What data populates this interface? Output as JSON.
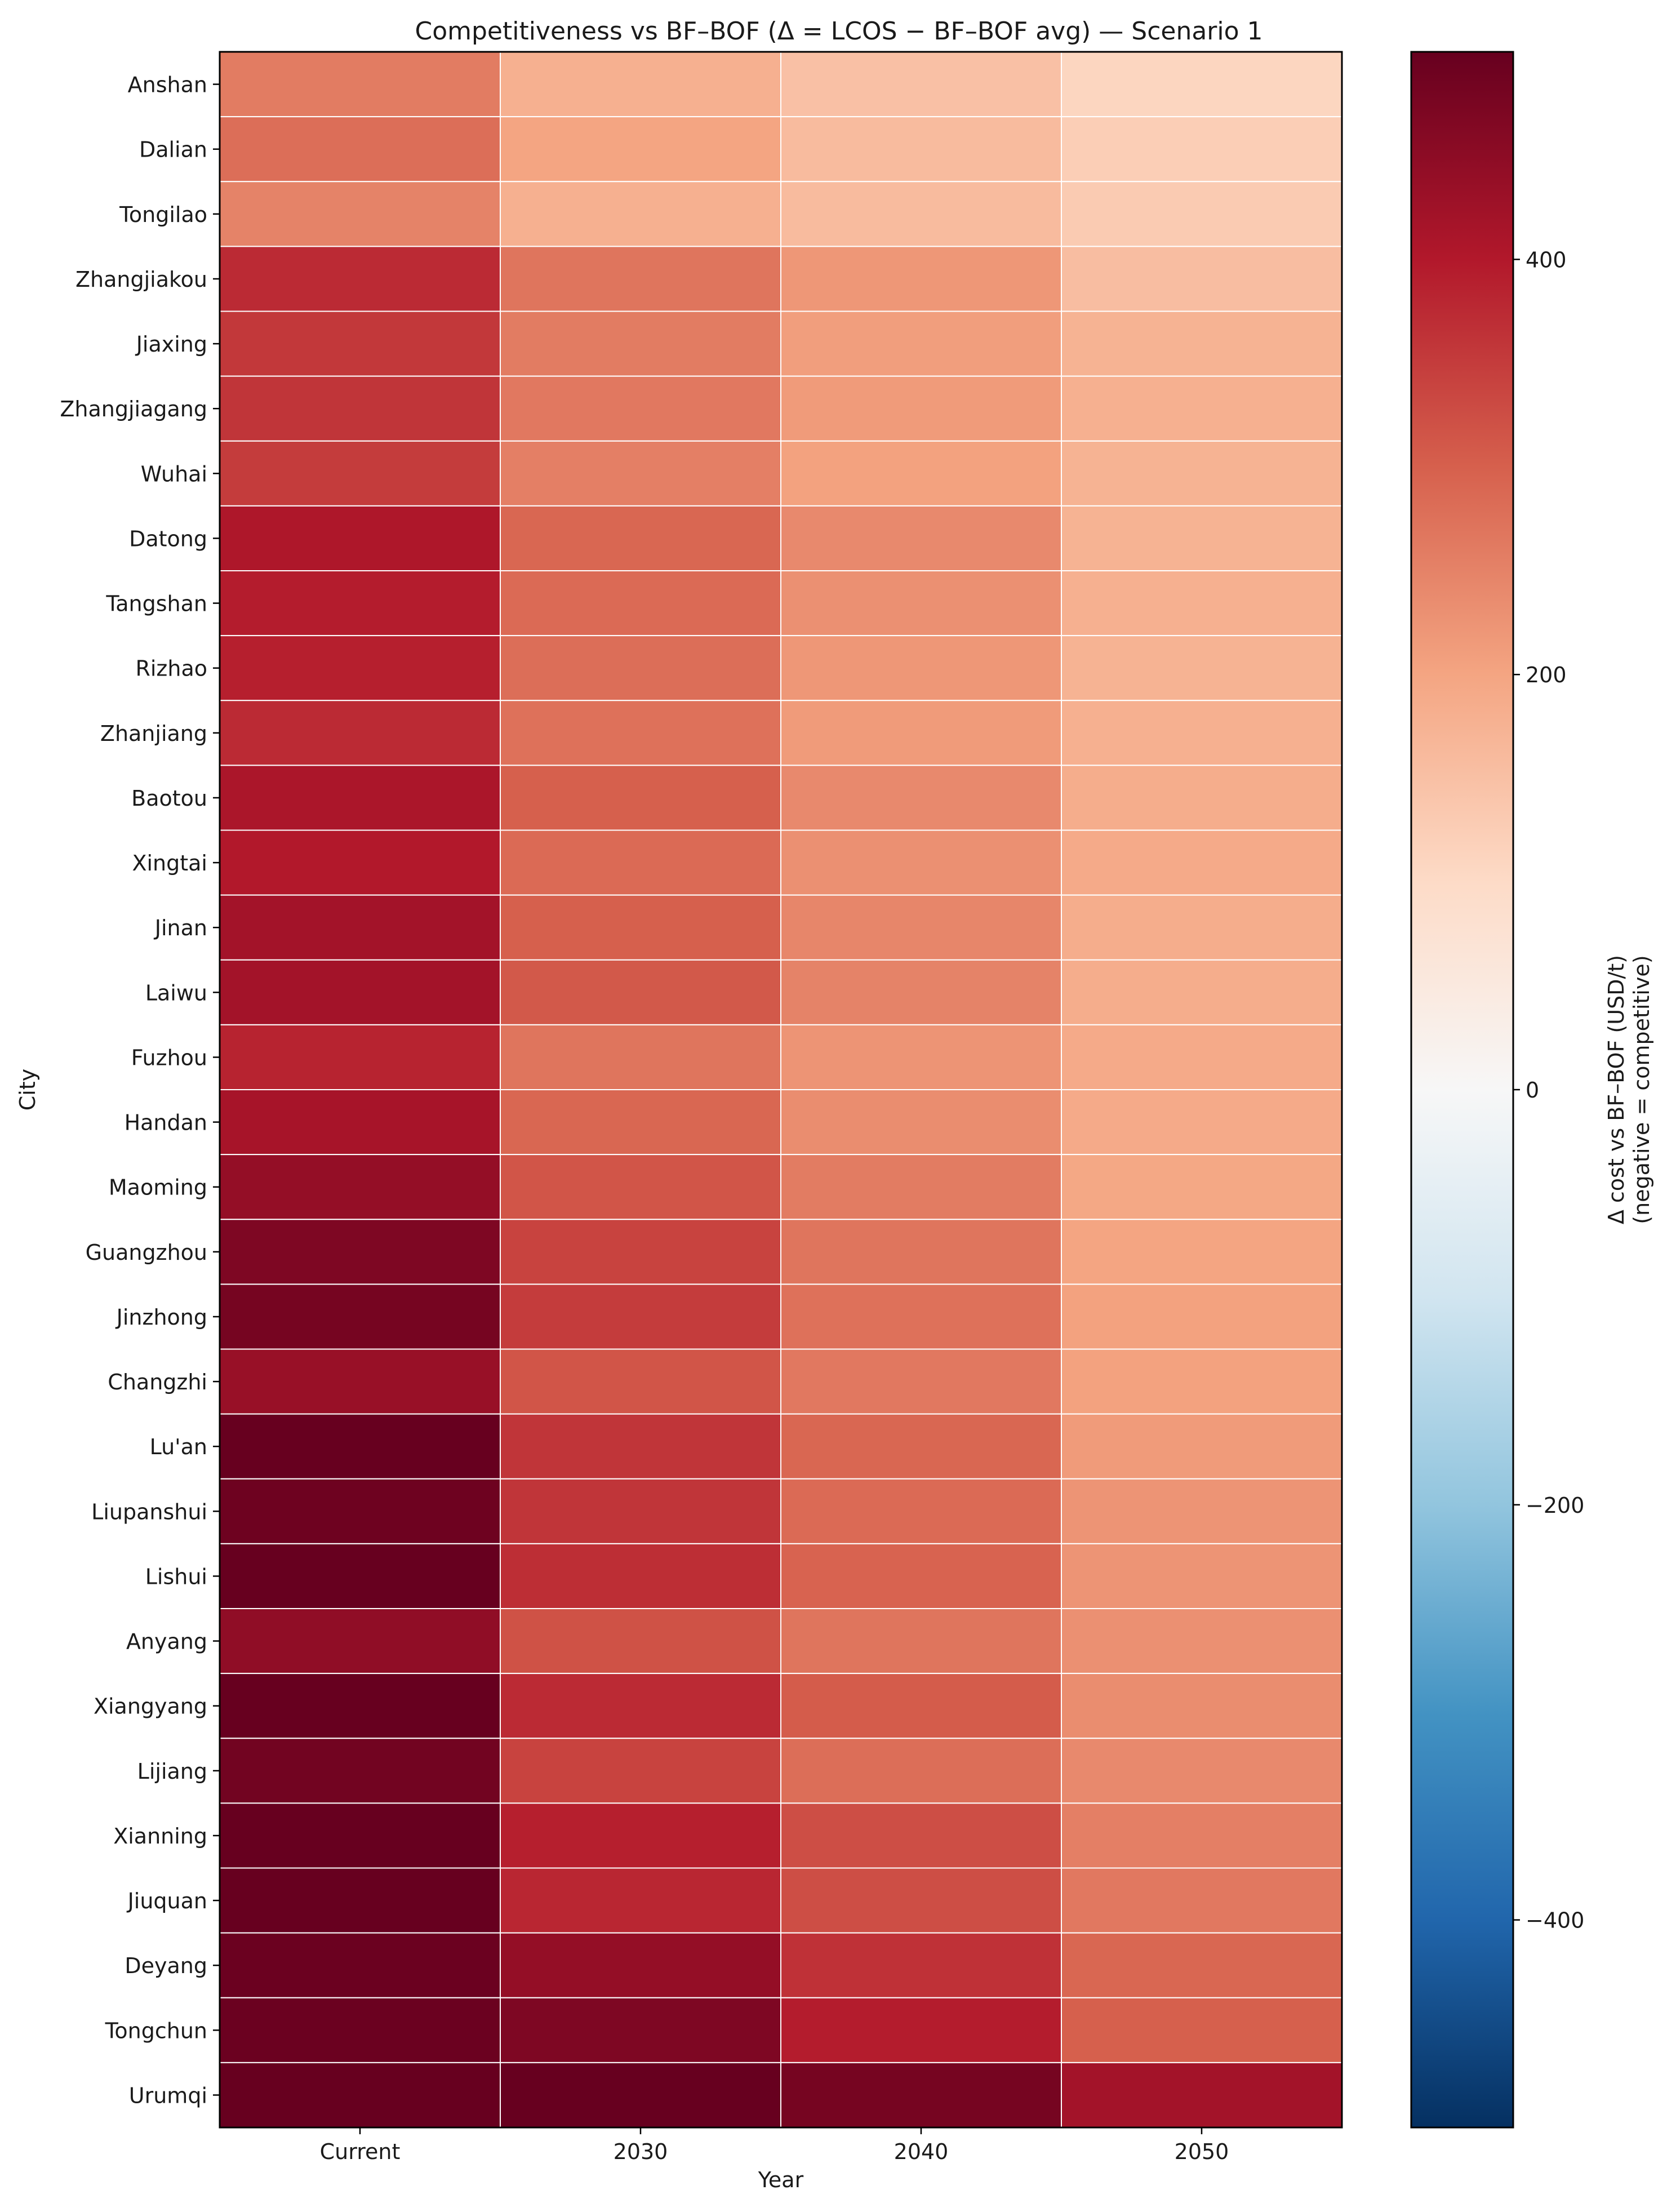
{
  "chart_data": {
    "type": "heatmap",
    "title": "Competitiveness vs BF–BOF (Δ = LCOS − BF–BOF avg) — Scenario 1",
    "xlabel": "Year",
    "ylabel": "City",
    "x_categories": [
      "Current",
      "2030",
      "2040",
      "2050"
    ],
    "y_categories": [
      "Anshan",
      "Dalian",
      "Tongilao",
      "Zhangjiakou",
      "Jiaxing",
      "Zhangjiagang",
      "Wuhai",
      "Datong",
      "Tangshan",
      "Rizhao",
      "Zhanjiang",
      "Baotou",
      "Xingtai",
      "Jinan",
      "Laiwu",
      "Fuzhou",
      "Handan",
      "Maoming",
      "Guangzhou",
      "Jinzhong",
      "Changzhi",
      "Lu'an",
      "Liupanshui",
      "Lishui",
      "Anyang",
      "Xiangyang",
      "Lijiang",
      "Xianning",
      "Jiuquan",
      "Deyang",
      "Tongchun",
      "Urumqi"
    ],
    "values": [
      [
        260,
        180,
        150,
        110
      ],
      [
        280,
        200,
        160,
        125
      ],
      [
        250,
        180,
        160,
        130
      ],
      [
        375,
        270,
        220,
        155
      ],
      [
        355,
        260,
        210,
        175
      ],
      [
        360,
        265,
        215,
        180
      ],
      [
        350,
        255,
        205,
        175
      ],
      [
        405,
        290,
        240,
        175
      ],
      [
        395,
        285,
        230,
        180
      ],
      [
        390,
        280,
        220,
        175
      ],
      [
        375,
        275,
        215,
        180
      ],
      [
        410,
        300,
        240,
        185
      ],
      [
        400,
        285,
        230,
        190
      ],
      [
        420,
        300,
        245,
        185
      ],
      [
        420,
        310,
        250,
        185
      ],
      [
        385,
        270,
        225,
        190
      ],
      [
        415,
        290,
        235,
        190
      ],
      [
        440,
        315,
        260,
        195
      ],
      [
        470,
        340,
        270,
        200
      ],
      [
        480,
        350,
        275,
        205
      ],
      [
        435,
        315,
        265,
        205
      ],
      [
        500,
        360,
        290,
        215
      ],
      [
        490,
        360,
        285,
        225
      ],
      [
        500,
        370,
        295,
        225
      ],
      [
        445,
        320,
        270,
        230
      ],
      [
        500,
        375,
        305,
        235
      ],
      [
        485,
        340,
        280,
        240
      ],
      [
        500,
        390,
        325,
        255
      ],
      [
        500,
        380,
        325,
        265
      ],
      [
        495,
        440,
        365,
        290
      ],
      [
        495,
        470,
        395,
        300
      ],
      [
        500,
        500,
        480,
        420
      ]
    ],
    "colorbar": {
      "label_line1": "Δ cost vs BF–BOF (USD/t)",
      "label_line2": "(negative = competitive)",
      "vmin": -500,
      "vmax": 500,
      "ticks": [
        -400,
        -200,
        0,
        200,
        400
      ],
      "tick_labels": [
        "−400",
        "−200",
        "0",
        "200",
        "400"
      ],
      "colormap": "RdBu_r",
      "colormap_stops": [
        "#053061",
        "#2166ac",
        "#4393c3",
        "#92c5de",
        "#d1e5f0",
        "#f7f7f7",
        "#fddbc7",
        "#f4a582",
        "#d6604d",
        "#b2182b",
        "#67001f"
      ]
    },
    "grid": true,
    "cell_edge_color": "#ffffff"
  }
}
